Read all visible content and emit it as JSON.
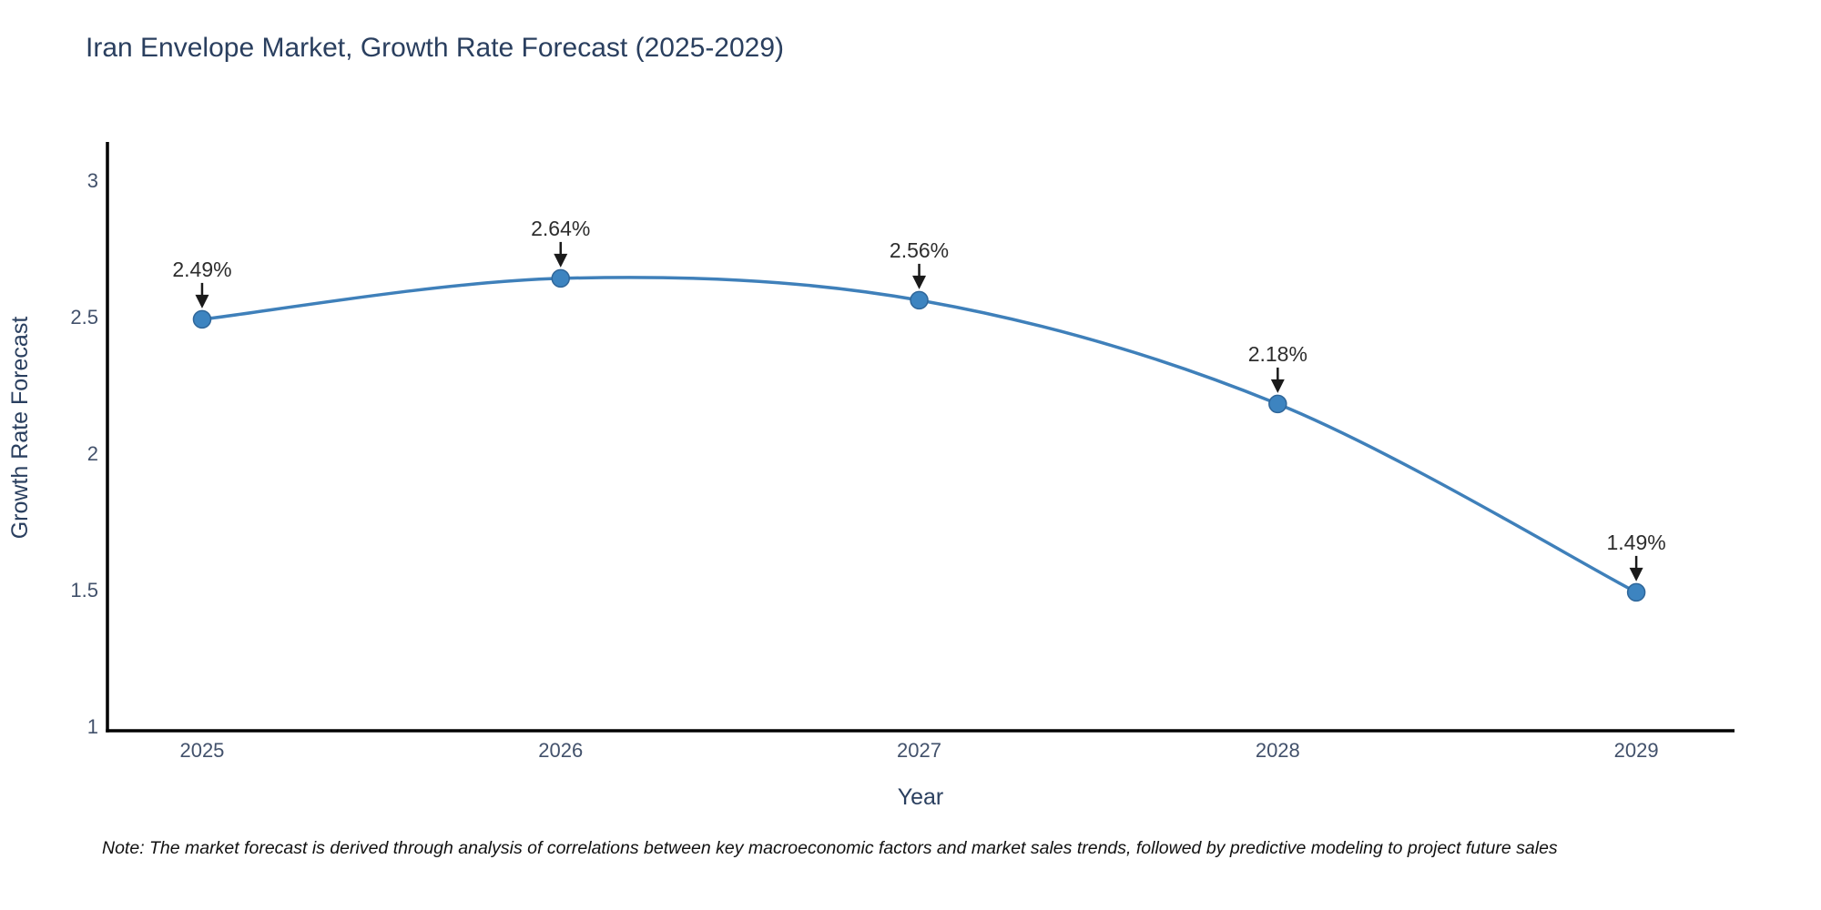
{
  "figure": {
    "note": "Note: The market forecast is derived through analysis of correlations between key macroeconomic factors and market sales trends, followed by predictive modeling to project future sales"
  },
  "chart_data": {
    "type": "line",
    "title": "Iran Envelope Market, Growth Rate Forecast (2025-2029)",
    "xlabel": "Year",
    "ylabel": "Growth Rate Forecast",
    "x": [
      2025,
      2026,
      2027,
      2028,
      2029
    ],
    "series": [
      {
        "name": "Growth Rate Forecast",
        "values": [
          2.49,
          2.64,
          2.56,
          2.18,
          1.49
        ],
        "point_labels": [
          "2.49%",
          "2.64%",
          "2.56%",
          "2.18%",
          "1.49%"
        ]
      }
    ],
    "line_shape": "spline",
    "markers": true,
    "grid": false,
    "legend": false,
    "xtick_labels": [
      "2025",
      "2026",
      "2027",
      "2028",
      "2029"
    ],
    "yticks": [
      1,
      1.5,
      2,
      2.5,
      3
    ],
    "ytick_labels": [
      "1",
      "1.5",
      "2",
      "2.5",
      "3"
    ],
    "xlim": [
      2024.736,
      2029.274
    ],
    "ylim": [
      0.983,
      3.133
    ],
    "colors": {
      "line": "#3f80ba",
      "marker_fill": "#3d84c0",
      "marker_stroke": "#2f6699",
      "axis_line": "#000000",
      "title_text": "#2a3f5f",
      "tick_text": "#42516b",
      "annotation_text": "#2d2d2d",
      "arrow": "#1a1a1a",
      "note_text": "#111111",
      "background": "#ffffff"
    }
  }
}
